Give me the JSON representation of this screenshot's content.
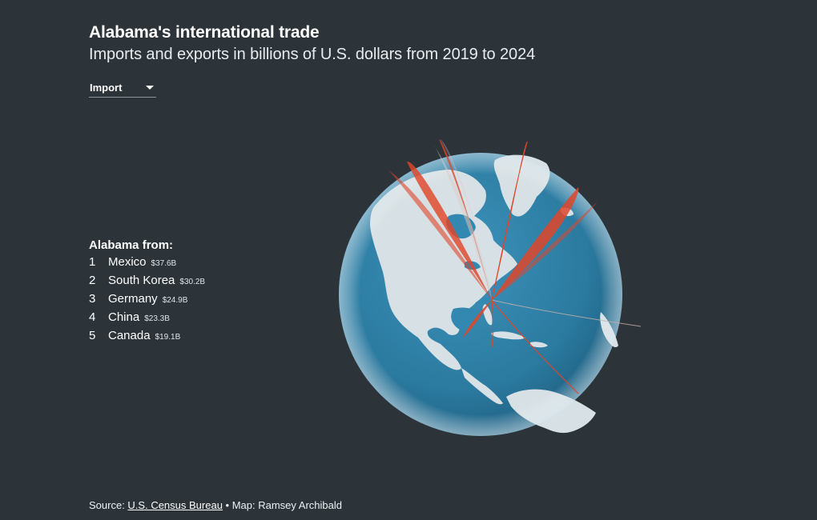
{
  "header": {
    "title": "Alabama's international trade",
    "subtitle": "Imports and exports in billions of U.S. dollars from 2019 to 2024"
  },
  "selector": {
    "selected": "Import"
  },
  "ranking": {
    "heading": "Alabama from:",
    "items": [
      {
        "rank": "1",
        "country": "Mexico",
        "value": "$37.6B"
      },
      {
        "rank": "2",
        "country": "South Korea",
        "value": "$30.2B"
      },
      {
        "rank": "3",
        "country": "Germany",
        "value": "$24.9B"
      },
      {
        "rank": "4",
        "country": "China",
        "value": "$23.3B"
      },
      {
        "rank": "5",
        "country": "Canada",
        "value": "$19.1B"
      }
    ]
  },
  "footer": {
    "source_prefix": "Source: ",
    "source_link": "U.S. Census Bureau",
    "credit": " • Map: Ramsey Archibald"
  },
  "colors": {
    "background": "#2c3339",
    "ocean": "#2f7fa6",
    "land": "#d9e2e6",
    "arc": "#e0452a"
  }
}
